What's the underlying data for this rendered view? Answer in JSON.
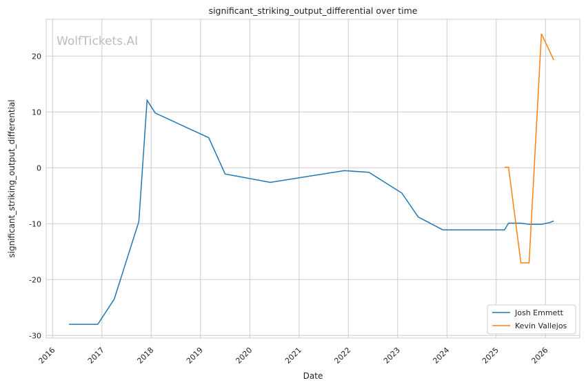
{
  "chart_data": {
    "type": "line",
    "title": "significant_striking_output_differential over time",
    "xlabel": "Date",
    "ylabel": "significant_striking_output_differential",
    "watermark": "WolfTickets.AI",
    "x_ticks": [
      "2016",
      "2017",
      "2018",
      "2019",
      "2020",
      "2021",
      "2022",
      "2023",
      "2024",
      "2025",
      "2026"
    ],
    "y_ticks": [
      -30,
      -20,
      -10,
      0,
      10,
      20
    ],
    "xlim": [
      "2015-11",
      "2026-09"
    ],
    "ylim": [
      -30.7,
      26.7
    ],
    "grid": true,
    "legend_position": "bottom-right",
    "series": [
      {
        "name": "Josh Emmett",
        "color": "#1f77b4",
        "points": [
          [
            "2016-05",
            -28
          ],
          [
            "2016-12",
            -28
          ],
          [
            "2017-04",
            -23.5
          ],
          [
            "2017-10",
            -9.6
          ],
          [
            "2017-12",
            12.1
          ],
          [
            "2018-02",
            9.8
          ],
          [
            "2019-03",
            5.4
          ],
          [
            "2019-07",
            -1.1
          ],
          [
            "2020-06",
            -2.6
          ],
          [
            "2021-12",
            -0.5
          ],
          [
            "2022-06",
            -0.8
          ],
          [
            "2023-02",
            -4.5
          ],
          [
            "2023-06",
            -8.8
          ],
          [
            "2023-12",
            -11.1
          ],
          [
            "2025-03",
            -11.1
          ],
          [
            "2025-04",
            -9.9
          ],
          [
            "2025-07",
            -9.9
          ],
          [
            "2025-09",
            -10.1
          ],
          [
            "2025-12",
            -10.1
          ],
          [
            "2026-02",
            -9.8
          ],
          [
            "2026-03",
            -9.5
          ]
        ]
      },
      {
        "name": "Kevin Vallejos",
        "color": "#ff7f0e",
        "points": [
          [
            "2025-03",
            0.1
          ],
          [
            "2025-04",
            0.1
          ],
          [
            "2025-07",
            -17
          ],
          [
            "2025-09",
            -17
          ],
          [
            "2025-12",
            24
          ],
          [
            "2026-03",
            19.3
          ]
        ]
      }
    ]
  }
}
